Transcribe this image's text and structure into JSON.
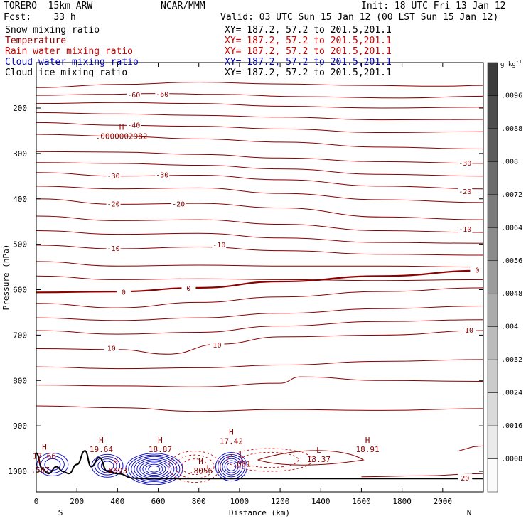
{
  "header": {
    "model": "TORERO  15km ARW",
    "org": "NCAR/MMM",
    "init": "Init: 18 UTC Fri 13 Jan 12",
    "fcst": "Fcst:    33 h",
    "valid": "Valid: 03 UTC Sun 15 Jan 12 (00 LST Sun 15 Jan 12)",
    "fields": [
      {
        "name": "Snow mixing ratio",
        "xy": "XY= 187.2, 57.2 to 201.5,201.1",
        "color": "#000000"
      },
      {
        "name": "Temperature",
        "xy": "XY= 187.2, 57.2 to 201.5,201.1",
        "color": "#8b0000"
      },
      {
        "name": "Rain water mixing ratio",
        "xy": "XY= 187.2, 57.2 to 201.5,201.1",
        "color": "#cc0000"
      },
      {
        "name": "Cloud water mixing ratio",
        "xy": "XY= 187.2, 57.2 to 201.5,201.1",
        "color": "#0000cc"
      },
      {
        "name": "Cloud ice mixing ratio",
        "xy": "XY= 187.2, 57.2 to 201.5,201.1",
        "color": "#000000"
      }
    ]
  },
  "chart_data": {
    "type": "cross-section contour",
    "xlabel": "Distance (km)",
    "ylabel": "Pressure (hPa)",
    "xlim": [
      0,
      2200
    ],
    "ylim": [
      1050,
      110
    ],
    "x_ticks": [
      0,
      200,
      400,
      600,
      800,
      1000,
      1200,
      1400,
      1600,
      1800,
      2000
    ],
    "y_ticks": [
      200,
      300,
      400,
      500,
      600,
      700,
      800,
      900,
      1000
    ],
    "endpoints": {
      "left": "S",
      "right": "N"
    },
    "colorbar": {
      "unit": "g kg",
      "unit_exp": "-1",
      "labels": [
        ".0096",
        ".0088",
        ".008",
        ".0072",
        ".0064",
        ".0056",
        ".0048",
        ".004",
        ".0032",
        ".0024",
        ".0016",
        ".0008"
      ],
      "levels": [
        0.0096,
        0.0088,
        0.008,
        0.0072,
        0.0064,
        0.0056,
        0.0048,
        0.004,
        0.0032,
        0.0024,
        0.0016,
        0.0008
      ]
    },
    "temperature_contour_labels": [
      {
        "text": "-60",
        "x": 480,
        "p": 172
      },
      {
        "text": "-60",
        "x": 620,
        "p": 170
      },
      {
        "text": "-40",
        "x": 480,
        "p": 238
      },
      {
        "text": "-30",
        "x": 380,
        "p": 350
      },
      {
        "text": "-30",
        "x": 620,
        "p": 348
      },
      {
        "text": "-30",
        "x": 2110,
        "p": 322
      },
      {
        "text": "-20",
        "x": 380,
        "p": 412
      },
      {
        "text": "-20",
        "x": 700,
        "p": 412
      },
      {
        "text": "-20",
        "x": 2110,
        "p": 385
      },
      {
        "text": "-10",
        "x": 380,
        "p": 510
      },
      {
        "text": "-10",
        "x": 900,
        "p": 502
      },
      {
        "text": "-10",
        "x": 2110,
        "p": 468
      },
      {
        "text": "0",
        "x": 430,
        "p": 606
      },
      {
        "text": "0",
        "x": 750,
        "p": 598
      },
      {
        "text": "0",
        "x": 2170,
        "p": 558
      },
      {
        "text": "10",
        "x": 370,
        "p": 730
      },
      {
        "text": "10",
        "x": 890,
        "p": 723
      },
      {
        "text": "10",
        "x": 2130,
        "p": 690
      },
      {
        "text": "20",
        "x": 2110,
        "p": 1016
      }
    ],
    "extrema": [
      {
        "kind": "H",
        "value": ".0000002982",
        "x": 420,
        "p": 260
      },
      {
        "kind": "H",
        "value": "17.66",
        "x": 40,
        "p": 965
      },
      {
        "kind": "H",
        "value": "19.64",
        "x": 320,
        "p": 950
      },
      {
        "kind": "H",
        "value": "18.87",
        "x": 610,
        "p": 950
      },
      {
        "kind": "H",
        "value": "17.42",
        "x": 960,
        "p": 932
      },
      {
        "kind": "H",
        "value": "18.91",
        "x": 1630,
        "p": 950
      },
      {
        "kind": "L",
        "value": "13.37",
        "x": 1390,
        "p": 972
      },
      {
        "kind": "H",
        "value": ".8693",
        "x": 390,
        "p": 997
      },
      {
        "kind": "H",
        "value": ".8056",
        "x": 810,
        "p": 997
      },
      {
        "kind": "L",
        "value": ".001",
        "x": 1010,
        "p": 982
      },
      {
        "kind": "L",
        "value": ".567",
        "x": 20,
        "p": 995
      }
    ],
    "temperature_isotherms": [
      {
        "level": -60,
        "points": [
          [
            0,
            155
          ],
          [
            400,
            148
          ],
          [
            800,
            143
          ],
          [
            1200,
            147
          ],
          [
            1600,
            150
          ],
          [
            2000,
            152
          ],
          [
            2200,
            150
          ]
        ]
      },
      {
        "level": -60,
        "points": [
          [
            0,
            172
          ],
          [
            300,
            170
          ],
          [
            600,
            168
          ],
          [
            900,
            170
          ],
          [
            1300,
            175
          ],
          [
            1800,
            178
          ],
          [
            2200,
            174
          ]
        ]
      },
      {
        "level": -50,
        "points": [
          [
            0,
            190
          ],
          [
            400,
            188
          ],
          [
            800,
            190
          ],
          [
            1200,
            196
          ],
          [
            1700,
            200
          ],
          [
            2200,
            198
          ]
        ]
      },
      {
        "level": -45,
        "points": [
          [
            0,
            210
          ],
          [
            400,
            213
          ],
          [
            800,
            216
          ],
          [
            1200,
            220
          ],
          [
            1700,
            226
          ],
          [
            2200,
            225
          ]
        ]
      },
      {
        "level": -40,
        "points": [
          [
            0,
            232
          ],
          [
            400,
            238
          ],
          [
            800,
            240
          ],
          [
            1200,
            246
          ],
          [
            1700,
            254
          ],
          [
            2200,
            252
          ]
        ]
      },
      {
        "level": -35,
        "points": [
          [
            0,
            258
          ],
          [
            400,
            262
          ],
          [
            800,
            268
          ],
          [
            1200,
            275
          ],
          [
            1700,
            286
          ],
          [
            2200,
            290
          ]
        ]
      },
      {
        "level": -30,
        "points": [
          [
            0,
            296
          ],
          [
            400,
            297
          ],
          [
            800,
            302
          ],
          [
            1200,
            310
          ],
          [
            1700,
            318
          ],
          [
            2200,
            322
          ]
        ]
      },
      {
        "level": -27,
        "points": [
          [
            0,
            320
          ],
          [
            400,
            322
          ],
          [
            800,
            326
          ],
          [
            1200,
            334
          ],
          [
            1700,
            346
          ],
          [
            2200,
            350
          ]
        ]
      },
      {
        "level": -25,
        "points": [
          [
            0,
            342
          ],
          [
            400,
            350
          ],
          [
            800,
            348
          ],
          [
            1200,
            358
          ],
          [
            1700,
            372
          ],
          [
            2200,
            378
          ]
        ]
      },
      {
        "level": -22,
        "points": [
          [
            0,
            372
          ],
          [
            400,
            378
          ],
          [
            800,
            376
          ],
          [
            1200,
            388
          ],
          [
            1700,
            402
          ],
          [
            2200,
            408
          ]
        ]
      },
      {
        "level": -20,
        "points": [
          [
            0,
            400
          ],
          [
            400,
            412
          ],
          [
            800,
            410
          ],
          [
            1200,
            420
          ],
          [
            1700,
            440
          ],
          [
            2200,
            446
          ]
        ]
      },
      {
        "level": -15,
        "points": [
          [
            0,
            438
          ],
          [
            400,
            448
          ],
          [
            800,
            446
          ],
          [
            1200,
            456
          ],
          [
            1700,
            470
          ],
          [
            2200,
            474
          ]
        ]
      },
      {
        "level": -12,
        "points": [
          [
            0,
            470
          ],
          [
            400,
            478
          ],
          [
            800,
            476
          ],
          [
            1200,
            486
          ],
          [
            1700,
            496
          ],
          [
            2200,
            498
          ]
        ]
      },
      {
        "level": -10,
        "points": [
          [
            0,
            502
          ],
          [
            400,
            510
          ],
          [
            800,
            506
          ],
          [
            1200,
            514
          ],
          [
            1700,
            522
          ],
          [
            2200,
            524
          ]
        ]
      },
      {
        "level": -5,
        "points": [
          [
            0,
            538
          ],
          [
            400,
            548
          ],
          [
            800,
            546
          ],
          [
            1200,
            548
          ],
          [
            1700,
            548
          ],
          [
            2200,
            550
          ]
        ]
      },
      {
        "level": -3,
        "points": [
          [
            0,
            570
          ],
          [
            400,
            578
          ],
          [
            800,
            576
          ],
          [
            1200,
            578
          ],
          [
            1700,
            580
          ],
          [
            2200,
            578
          ]
        ]
      },
      {
        "level": 0,
        "points": [
          [
            0,
            606
          ],
          [
            400,
            604
          ],
          [
            800,
            596
          ],
          [
            1200,
            582
          ],
          [
            1700,
            570
          ],
          [
            2200,
            558
          ]
        ]
      },
      {
        "level": 2,
        "points": [
          [
            0,
            630
          ],
          [
            400,
            640
          ],
          [
            800,
            628
          ],
          [
            1200,
            616
          ],
          [
            1700,
            604
          ],
          [
            2200,
            596
          ]
        ]
      },
      {
        "level": 5,
        "points": [
          [
            0,
            662
          ],
          [
            400,
            668
          ],
          [
            800,
            662
          ],
          [
            1200,
            652
          ],
          [
            1700,
            642
          ],
          [
            2200,
            636
          ]
        ]
      },
      {
        "level": 7,
        "points": [
          [
            0,
            690
          ],
          [
            400,
            698
          ],
          [
            800,
            694
          ],
          [
            1200,
            680
          ],
          [
            1700,
            670
          ],
          [
            2200,
            666
          ]
        ]
      },
      {
        "level": 10,
        "points": [
          [
            0,
            730
          ],
          [
            400,
            732
          ],
          [
            650,
            742
          ],
          [
            900,
            720
          ],
          [
            1200,
            704
          ],
          [
            1700,
            700
          ],
          [
            2200,
            690
          ]
        ]
      },
      {
        "level": 12,
        "points": [
          [
            0,
            770
          ],
          [
            400,
            774
          ],
          [
            800,
            772
          ],
          [
            1200,
            766
          ],
          [
            1700,
            758
          ],
          [
            2200,
            754
          ]
        ]
      },
      {
        "level": 14,
        "points": [
          [
            0,
            810
          ],
          [
            400,
            812
          ],
          [
            800,
            814
          ],
          [
            1200,
            806
          ],
          [
            1300,
            792
          ],
          [
            1700,
            800
          ],
          [
            2200,
            802
          ]
        ]
      },
      {
        "level": 16,
        "points": [
          [
            0,
            856
          ],
          [
            400,
            860
          ],
          [
            800,
            868
          ],
          [
            1200,
            864
          ],
          [
            1700,
            866
          ],
          [
            2200,
            862
          ]
        ]
      },
      {
        "level": 20,
        "points": [
          [
            1600,
            1012
          ],
          [
            1900,
            1010
          ],
          [
            2200,
            1005
          ]
        ]
      }
    ]
  }
}
